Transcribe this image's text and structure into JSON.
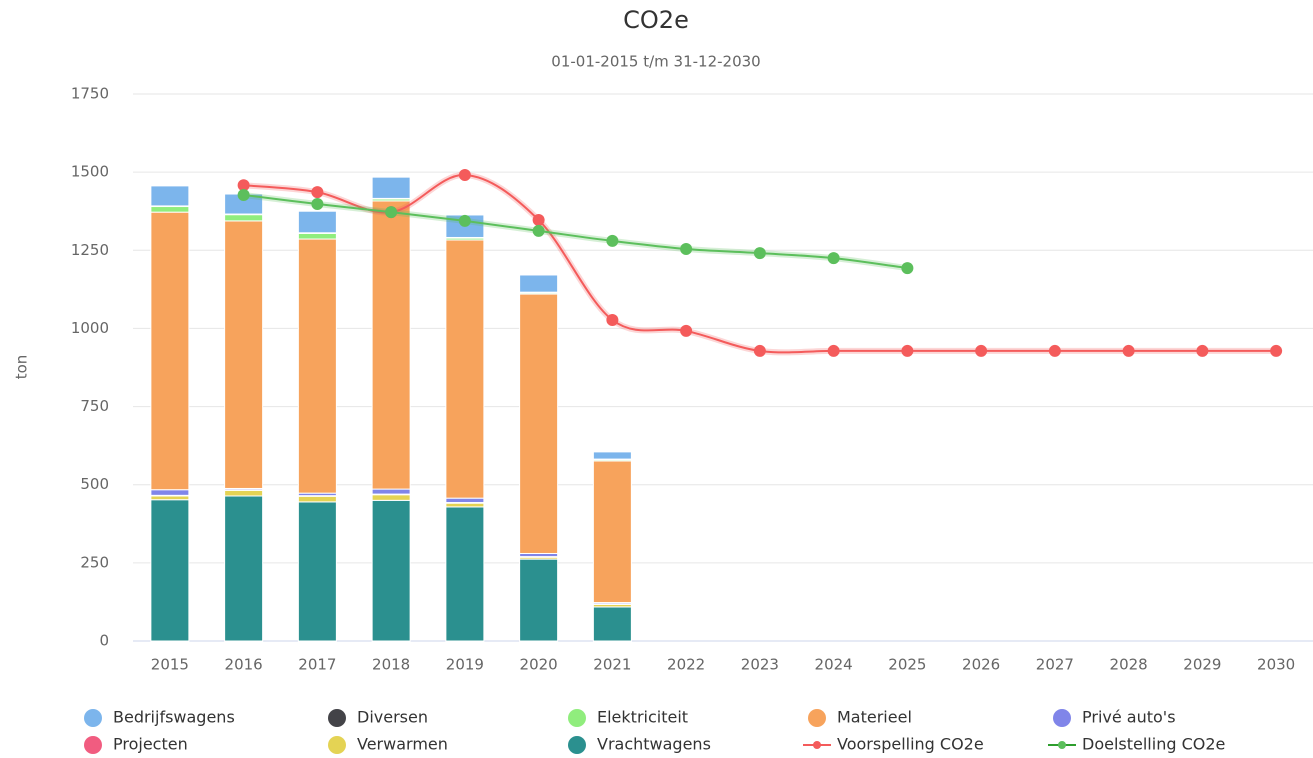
{
  "chart_data": {
    "type": "bar",
    "stacked": true,
    "title": "CO2e",
    "subtitle": "01-01-2015 t/m 31-12-2030",
    "y_label": "ton",
    "categories": [
      "2015",
      "2016",
      "2017",
      "2018",
      "2019",
      "2020",
      "2021",
      "2022",
      "2023",
      "2024",
      "2025",
      "2026",
      "2027",
      "2028",
      "2029",
      "2030"
    ],
    "ylim": [
      0,
      1750
    ],
    "yticks": [
      0,
      250,
      500,
      750,
      1000,
      1250,
      1500,
      1750
    ],
    "grid": true,
    "series": [
      {
        "name": "Bedrijfswagens",
        "color": "#7cb5ec",
        "values": [
          64,
          64,
          69,
          68,
          72,
          55,
          23,
          null,
          null,
          null,
          null,
          null,
          null,
          null,
          null,
          null
        ]
      },
      {
        "name": "Diversen",
        "color": "#434348",
        "values": [
          2,
          2,
          2,
          2,
          2,
          2,
          2,
          null,
          null,
          null,
          null,
          null,
          null,
          null,
          null,
          null
        ]
      },
      {
        "name": "Elektriciteit",
        "color": "#90ed7d",
        "values": [
          18,
          20,
          18,
          6,
          6,
          4,
          4,
          null,
          null,
          null,
          null,
          null,
          null,
          null,
          null,
          null
        ]
      },
      {
        "name": "Materieel",
        "color": "#f7a35c",
        "values": [
          888,
          856,
          813,
          922,
          826,
          830,
          453,
          null,
          null,
          null,
          null,
          null,
          null,
          null,
          null,
          null
        ]
      },
      {
        "name": "Privé auto's",
        "color": "#8085e9",
        "values": [
          18,
          4,
          8,
          16,
          14,
          10,
          4,
          null,
          null,
          null,
          null,
          null,
          null,
          null,
          null,
          null
        ]
      },
      {
        "name": "Projecten",
        "color": "#f15c80",
        "values": [
          2,
          2,
          2,
          2,
          2,
          2,
          2,
          null,
          null,
          null,
          null,
          null,
          null,
          null,
          null,
          null
        ]
      },
      {
        "name": "Verwarmen",
        "color": "#e4d354",
        "values": [
          12,
          18,
          18,
          18,
          12,
          6,
          8,
          null,
          null,
          null,
          null,
          null,
          null,
          null,
          null,
          null
        ]
      },
      {
        "name": "Vrachtwagens",
        "color": "#2b908f",
        "values": [
          452,
          464,
          445,
          450,
          429,
          262,
          109,
          null,
          null,
          null,
          null,
          null,
          null,
          null,
          null,
          null
        ]
      },
      {
        "name": "Voorspelling CO2e",
        "type": "line",
        "color": "#f45b5b",
        "values": [
          null,
          1458,
          1436,
          1372,
          1491,
          1347,
          1027,
          992,
          928,
          928,
          928,
          928,
          928,
          928,
          928,
          928
        ]
      },
      {
        "name": "Doelstelling CO2e",
        "type": "line",
        "color": "#5cbf5c",
        "values": [
          null,
          1427,
          1398,
          1372,
          1344,
          1312,
          1280,
          1254,
          1241,
          1225,
          1193,
          null,
          null,
          null,
          null,
          null
        ]
      }
    ]
  }
}
